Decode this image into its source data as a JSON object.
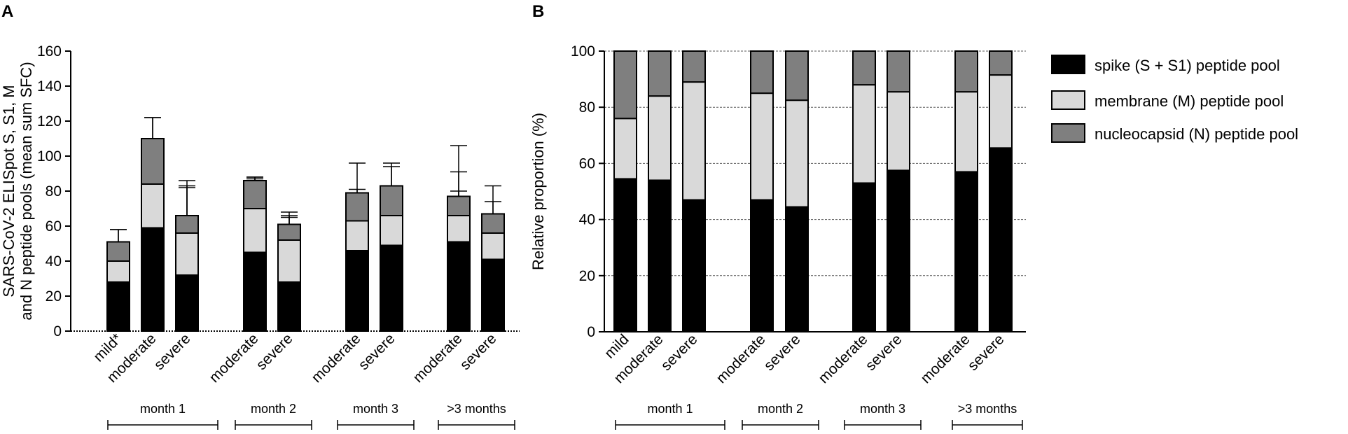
{
  "panel_a_label": "A",
  "panel_b_label": "B",
  "legend": {
    "spike": "spike (S + S1) peptide pool",
    "membrane": "membrane (M) peptide pool",
    "nucleocapsid": "nucleocapsid (N) peptide pool"
  },
  "colors": {
    "spike": "#000000",
    "membrane": "#d9d9d9",
    "nucleocapsid": "#7f7f7f"
  },
  "chart_data": [
    {
      "type": "bar",
      "stacked": true,
      "panel": "A",
      "ylabel_line1": "SARS-CoV-2 ELISpot S, S1, M",
      "ylabel_line2": "and N peptide pools (mean sum SFC)",
      "ylim": [
        0,
        160
      ],
      "yticks": [
        0,
        20,
        40,
        60,
        80,
        100,
        120,
        140,
        160
      ],
      "groups": [
        "month 1",
        "month 2",
        "month 3",
        ">3 months"
      ],
      "categories": [
        {
          "label": "mild*",
          "group": "month 1"
        },
        {
          "label": "moderate",
          "group": "month 1"
        },
        {
          "label": "severe",
          "group": "month 1"
        },
        {
          "label": "moderate",
          "group": "month 2"
        },
        {
          "label": "severe",
          "group": "month 2"
        },
        {
          "label": "moderate",
          "group": "month 3"
        },
        {
          "label": "severe",
          "group": "month 3"
        },
        {
          "label": "moderate",
          "group": ">3 months"
        },
        {
          "label": "severe",
          "group": ">3 months"
        }
      ],
      "series": [
        {
          "name": "spike (S + S1) peptide pool",
          "values": [
            28,
            59,
            32,
            45,
            28,
            46,
            49,
            51,
            41
          ],
          "error": [
            30,
            63,
            50,
            43,
            40,
            50,
            47,
            55,
            42
          ]
        },
        {
          "name": "membrane (M) peptide pool",
          "values": [
            12,
            25,
            24,
            25,
            24,
            17,
            17,
            15,
            15
          ],
          "error": [
            6,
            17,
            27,
            17,
            13,
            16,
            10,
            25,
            11
          ]
        },
        {
          "name": "nucleocapsid (N) peptide pool",
          "values": [
            11,
            26,
            10,
            16,
            9,
            16,
            17,
            11,
            11
          ],
          "error": [
            7,
            12,
            20,
            2,
            5,
            2,
            11,
            3,
            7
          ]
        }
      ]
    },
    {
      "type": "bar",
      "stacked": true,
      "panel": "B",
      "ylabel": "Relative proportion (%)",
      "ylim": [
        0,
        100
      ],
      "yticks": [
        0,
        20,
        40,
        60,
        80,
        100
      ],
      "grid": true,
      "groups": [
        "month 1",
        "month 2",
        "month 3",
        ">3 months"
      ],
      "categories": [
        {
          "label": "mild",
          "group": "month 1"
        },
        {
          "label": "moderate",
          "group": "month 1"
        },
        {
          "label": "severe",
          "group": "month 1"
        },
        {
          "label": "moderate",
          "group": "month 2"
        },
        {
          "label": "severe",
          "group": "month 2"
        },
        {
          "label": "moderate",
          "group": "month 3"
        },
        {
          "label": "severe",
          "group": "month 3"
        },
        {
          "label": "moderate",
          "group": ">3 months"
        },
        {
          "label": "severe",
          "group": ">3 months"
        }
      ],
      "series": [
        {
          "name": "spike (S + S1) peptide pool",
          "values": [
            54.5,
            54,
            47,
            47,
            44.5,
            53,
            57.5,
            57,
            65.5
          ]
        },
        {
          "name": "membrane (M) peptide pool",
          "values": [
            21.5,
            30,
            42,
            38,
            38,
            35,
            28,
            28.5,
            26
          ]
        },
        {
          "name": "nucleocapsid (N) peptide pool",
          "values": [
            24,
            16,
            11,
            15,
            17.5,
            12,
            14.5,
            14.5,
            8.5
          ]
        }
      ]
    }
  ]
}
